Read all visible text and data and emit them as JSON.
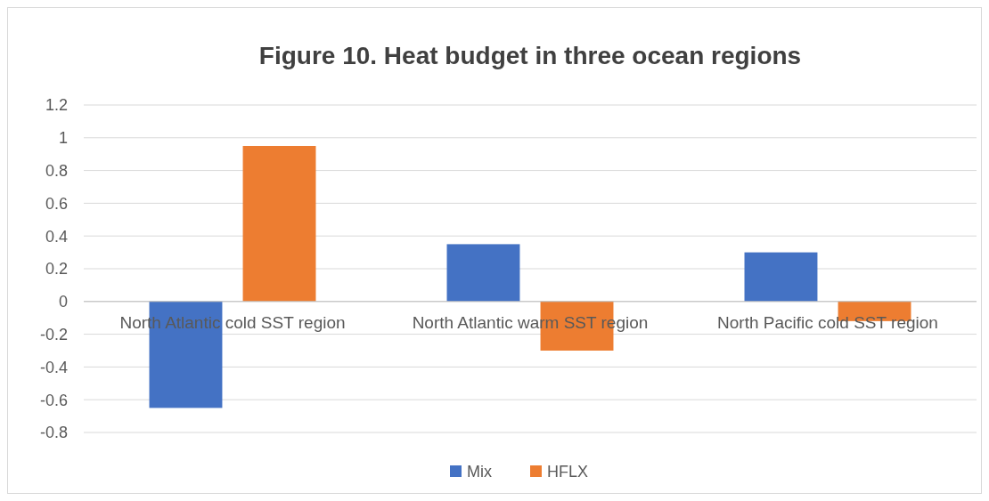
{
  "chart_data": {
    "type": "bar",
    "title": "Figure 10. Heat budget in three ocean regions",
    "categories": [
      "North Atlantic cold SST region",
      "North Atlantic warm SST region",
      "North Pacific cold SST region"
    ],
    "series": [
      {
        "name": "Mix",
        "color": "#4472c4",
        "values": [
          -0.65,
          0.35,
          0.3
        ]
      },
      {
        "name": "HFLX",
        "color": "#ed7d31",
        "values": [
          0.95,
          -0.3,
          -0.12
        ]
      }
    ],
    "ylim": [
      -0.8,
      1.2
    ],
    "yticks": [
      1.2,
      1,
      0.8,
      0.6,
      0.4,
      0.2,
      0,
      -0.2,
      -0.4,
      -0.6,
      -0.8
    ],
    "grid": "y",
    "legend": "bottom"
  }
}
